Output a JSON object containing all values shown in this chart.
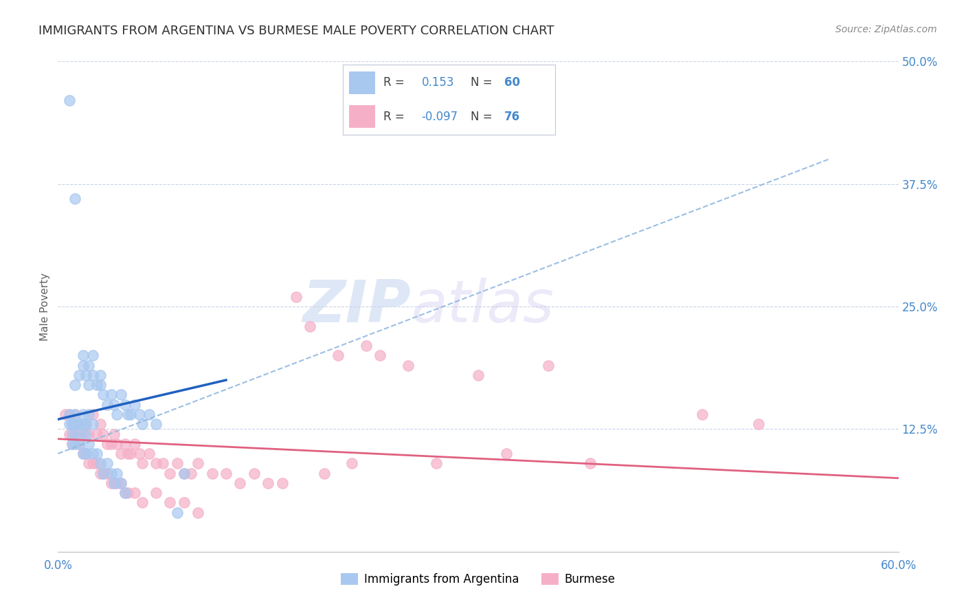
{
  "title": "IMMIGRANTS FROM ARGENTINA VS BURMESE MALE POVERTY CORRELATION CHART",
  "source_text": "Source: ZipAtlas.com",
  "ylabel": "Male Poverty",
  "xlim": [
    0.0,
    0.6
  ],
  "ylim": [
    0.0,
    0.5
  ],
  "ytick_vals": [
    0.0,
    0.125,
    0.25,
    0.375,
    0.5
  ],
  "ytick_labels": [
    "",
    "12.5%",
    "25.0%",
    "37.5%",
    "50.0%"
  ],
  "series1_color": "#a8c8f0",
  "series2_color": "#f5b0c8",
  "series1_line_color": "#2060c0",
  "series2_line_color": "#e06080",
  "series1_dash_color": "#90b8e0",
  "legend_R1": "0.153",
  "legend_N1": "60",
  "legend_R2": "-0.097",
  "legend_N2": "76",
  "legend_label1": "Immigrants from Argentina",
  "legend_label2": "Burmese",
  "watermark_zip": "ZIP",
  "watermark_atlas": "atlas",
  "background_color": "#ffffff",
  "grid_color": "#c8d4e8",
  "title_color": "#303030",
  "axis_label_color": "#606060",
  "tick_label_color_blue": "#4488cc",
  "tick_label_color_x": "#4488cc",
  "scatter1_x": [
    0.008,
    0.012,
    0.012,
    0.015,
    0.018,
    0.018,
    0.02,
    0.022,
    0.022,
    0.025,
    0.025,
    0.028,
    0.03,
    0.03,
    0.032,
    0.035,
    0.038,
    0.04,
    0.042,
    0.045,
    0.048,
    0.05,
    0.052,
    0.055,
    0.058,
    0.06,
    0.065,
    0.07,
    0.008,
    0.01,
    0.012,
    0.015,
    0.018,
    0.02,
    0.022,
    0.025,
    0.008,
    0.01,
    0.012,
    0.015,
    0.018,
    0.02,
    0.01,
    0.012,
    0.015,
    0.018,
    0.02,
    0.022,
    0.025,
    0.028,
    0.03,
    0.032,
    0.035,
    0.038,
    0.04,
    0.042,
    0.045,
    0.048,
    0.085,
    0.09
  ],
  "scatter1_y": [
    0.46,
    0.36,
    0.17,
    0.18,
    0.2,
    0.19,
    0.18,
    0.19,
    0.17,
    0.2,
    0.18,
    0.17,
    0.18,
    0.17,
    0.16,
    0.15,
    0.16,
    0.15,
    0.14,
    0.16,
    0.15,
    0.14,
    0.14,
    0.15,
    0.14,
    0.13,
    0.14,
    0.13,
    0.14,
    0.13,
    0.14,
    0.13,
    0.14,
    0.13,
    0.14,
    0.13,
    0.13,
    0.12,
    0.13,
    0.12,
    0.13,
    0.12,
    0.11,
    0.11,
    0.11,
    0.1,
    0.1,
    0.11,
    0.1,
    0.1,
    0.09,
    0.08,
    0.09,
    0.08,
    0.07,
    0.08,
    0.07,
    0.06,
    0.04,
    0.08
  ],
  "scatter2_x": [
    0.005,
    0.008,
    0.01,
    0.012,
    0.015,
    0.018,
    0.02,
    0.022,
    0.025,
    0.028,
    0.03,
    0.032,
    0.035,
    0.038,
    0.04,
    0.042,
    0.045,
    0.048,
    0.05,
    0.052,
    0.055,
    0.058,
    0.06,
    0.065,
    0.07,
    0.075,
    0.08,
    0.085,
    0.09,
    0.095,
    0.1,
    0.11,
    0.12,
    0.13,
    0.14,
    0.15,
    0.16,
    0.17,
    0.18,
    0.19,
    0.2,
    0.21,
    0.22,
    0.23,
    0.25,
    0.27,
    0.3,
    0.32,
    0.35,
    0.38,
    0.008,
    0.01,
    0.012,
    0.015,
    0.018,
    0.02,
    0.022,
    0.025,
    0.028,
    0.03,
    0.032,
    0.035,
    0.038,
    0.04,
    0.042,
    0.045,
    0.048,
    0.05,
    0.055,
    0.06,
    0.07,
    0.08,
    0.09,
    0.1,
    0.46,
    0.5
  ],
  "scatter2_y": [
    0.14,
    0.14,
    0.13,
    0.14,
    0.13,
    0.12,
    0.13,
    0.12,
    0.14,
    0.12,
    0.13,
    0.12,
    0.11,
    0.11,
    0.12,
    0.11,
    0.1,
    0.11,
    0.1,
    0.1,
    0.11,
    0.1,
    0.09,
    0.1,
    0.09,
    0.09,
    0.08,
    0.09,
    0.08,
    0.08,
    0.09,
    0.08,
    0.08,
    0.07,
    0.08,
    0.07,
    0.07,
    0.26,
    0.23,
    0.08,
    0.2,
    0.09,
    0.21,
    0.2,
    0.19,
    0.09,
    0.18,
    0.1,
    0.19,
    0.09,
    0.12,
    0.11,
    0.12,
    0.11,
    0.1,
    0.1,
    0.09,
    0.09,
    0.09,
    0.08,
    0.08,
    0.08,
    0.07,
    0.07,
    0.07,
    0.07,
    0.06,
    0.06,
    0.06,
    0.05,
    0.06,
    0.05,
    0.05,
    0.04,
    0.14,
    0.13
  ],
  "trendline1_x0": 0.0,
  "trendline1_y0": 0.135,
  "trendline1_x1": 0.12,
  "trendline1_y1": 0.175,
  "trendline2_x0": 0.0,
  "trendline2_y0": 0.115,
  "trendline2_x1": 0.6,
  "trendline2_y1": 0.075,
  "dashline_x0": 0.0,
  "dashline_y0": 0.1,
  "dashline_x1": 0.55,
  "dashline_y1": 0.4
}
